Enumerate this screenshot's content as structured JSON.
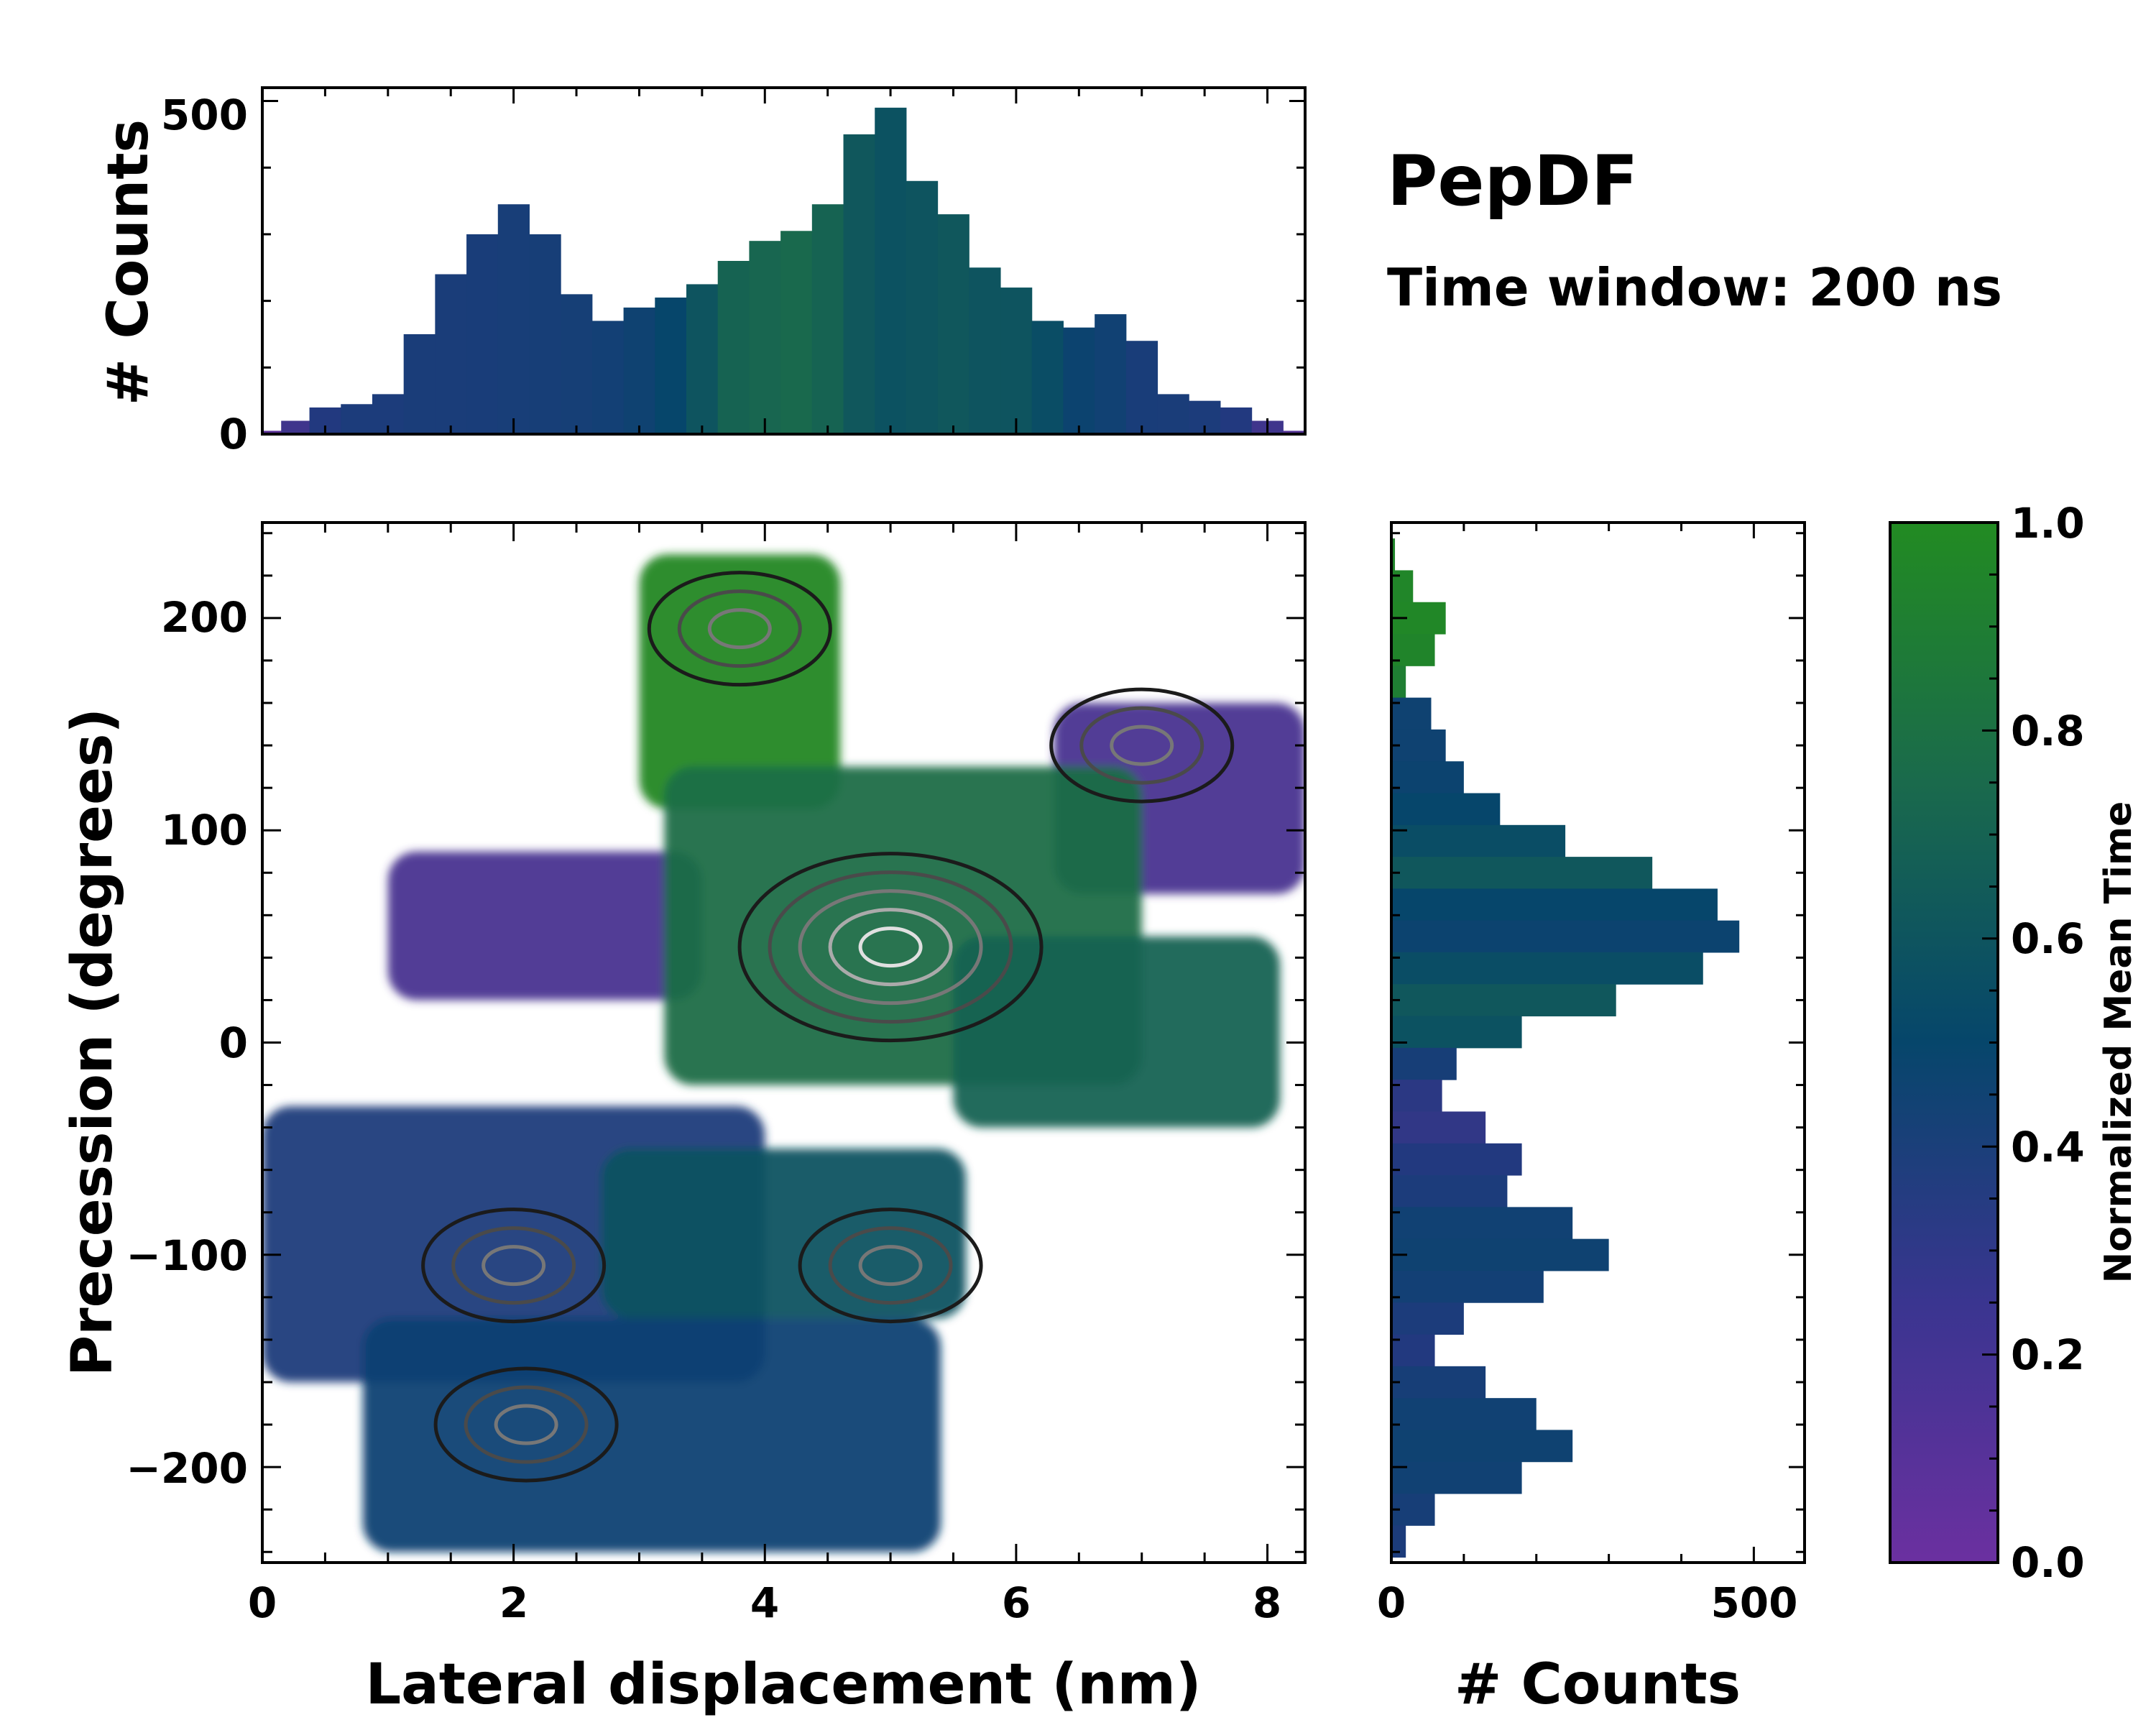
{
  "figure": {
    "title": "PepDF",
    "subtitle": "Time window: 200 ns"
  },
  "chart_data": [
    {
      "id": "main",
      "type": "heatmap",
      "xlabel": "Lateral displacement (nm)",
      "ylabel": "Precession (degrees)",
      "xlim": [
        0,
        8.3
      ],
      "ylim": [
        -245,
        245
      ],
      "xticks": [
        "0",
        "2",
        "4",
        "6",
        "8"
      ],
      "xtick_values": [
        0,
        2,
        4,
        6,
        8
      ],
      "yticks": [
        "−200",
        "−100",
        "0",
        "100",
        "200"
      ],
      "ytick_values": [
        -200,
        -100,
        0,
        100,
        200
      ],
      "colormap": "normalized mean time (purple → navy → teal → green)",
      "regions": [
        {
          "name": "top-green",
          "x": [
            3.0,
            4.6
          ],
          "y": [
            110,
            230
          ],
          "time": 0.98
        },
        {
          "name": "upper-left-purple",
          "x": [
            1.0,
            3.5
          ],
          "y": [
            20,
            90
          ],
          "time": 0.12
        },
        {
          "name": "upper-right-purple",
          "x": [
            6.3,
            8.3
          ],
          "y": [
            70,
            160
          ],
          "time": 0.12
        },
        {
          "name": "central-green",
          "x": [
            3.2,
            7.0
          ],
          "y": [
            -20,
            130
          ],
          "time": 0.78
        },
        {
          "name": "right-teal",
          "x": [
            5.5,
            8.1
          ],
          "y": [
            -40,
            50
          ],
          "time": 0.7
        },
        {
          "name": "left-band",
          "x": [
            0.0,
            4.0
          ],
          "y": [
            -160,
            -30
          ],
          "time": 0.3
        },
        {
          "name": "middle-teal",
          "x": [
            2.7,
            5.6
          ],
          "y": [
            -130,
            -50
          ],
          "time": 0.58
        },
        {
          "name": "bottom-navy",
          "x": [
            0.8,
            5.4
          ],
          "y": [
            -240,
            -130
          ],
          "time": 0.4
        }
      ],
      "density_peaks": [
        {
          "x": 5.0,
          "y": 45
        },
        {
          "x": 2.1,
          "y": -180
        },
        {
          "x": 2.0,
          "y": -105
        },
        {
          "x": 5.0,
          "y": -105
        },
        {
          "x": 3.8,
          "y": 195
        },
        {
          "x": 7.0,
          "y": 140
        }
      ]
    },
    {
      "id": "top-histogram",
      "type": "bar",
      "xlabel": "",
      "ylabel": "# Counts",
      "xlim": [
        0,
        8.3
      ],
      "ylim": [
        0,
        520
      ],
      "yticks": [
        "0",
        "500"
      ],
      "ytick_values": [
        0,
        500
      ],
      "bin_centers_nm": [
        0.05,
        0.25,
        0.5,
        0.75,
        1.0,
        1.25,
        1.5,
        1.75,
        2.0,
        2.25,
        2.5,
        2.75,
        3.0,
        3.25,
        3.5,
        3.75,
        4.0,
        4.25,
        4.5,
        4.75,
        5.0,
        5.25,
        5.5,
        5.75,
        6.0,
        6.25,
        6.5,
        6.75,
        7.0,
        7.25,
        7.5,
        7.75,
        8.0,
        8.25
      ],
      "values": [
        5,
        20,
        40,
        45,
        60,
        150,
        240,
        300,
        345,
        300,
        210,
        170,
        190,
        205,
        225,
        260,
        290,
        305,
        345,
        450,
        490,
        380,
        330,
        250,
        220,
        170,
        160,
        180,
        140,
        60,
        50,
        40,
        20,
        5
      ],
      "mean_time": [
        0.05,
        0.15,
        0.25,
        0.3,
        0.3,
        0.32,
        0.32,
        0.33,
        0.34,
        0.35,
        0.36,
        0.38,
        0.42,
        0.5,
        0.6,
        0.7,
        0.72,
        0.74,
        0.7,
        0.62,
        0.58,
        0.6,
        0.62,
        0.6,
        0.6,
        0.55,
        0.45,
        0.4,
        0.33,
        0.32,
        0.3,
        0.25,
        0.15,
        0.08
      ]
    },
    {
      "id": "right-histogram",
      "type": "bar",
      "orientation": "horizontal",
      "xlabel": "# Counts",
      "ylabel": "",
      "xlim": [
        0,
        570
      ],
      "ylim": [
        -245,
        245
      ],
      "xticks": [
        "0",
        "500"
      ],
      "xtick_values": [
        0,
        500
      ],
      "bin_centers_deg": [
        230,
        215,
        200,
        185,
        170,
        155,
        140,
        125,
        110,
        95,
        80,
        65,
        50,
        35,
        20,
        5,
        -10,
        -25,
        -40,
        -55,
        -70,
        -85,
        -100,
        -115,
        -130,
        -145,
        -160,
        -175,
        -190,
        -205,
        -220,
        -235
      ],
      "values": [
        5,
        30,
        75,
        60,
        20,
        55,
        75,
        100,
        150,
        240,
        360,
        450,
        480,
        430,
        310,
        180,
        90,
        70,
        130,
        180,
        160,
        250,
        300,
        210,
        100,
        60,
        130,
        200,
        250,
        180,
        60,
        20
      ],
      "mean_time": [
        0.95,
        0.96,
        0.97,
        0.95,
        0.9,
        0.42,
        0.42,
        0.45,
        0.5,
        0.55,
        0.62,
        0.5,
        0.45,
        0.55,
        0.62,
        0.58,
        0.35,
        0.22,
        0.2,
        0.25,
        0.3,
        0.4,
        0.42,
        0.38,
        0.3,
        0.25,
        0.35,
        0.4,
        0.42,
        0.4,
        0.35,
        0.3
      ]
    },
    {
      "id": "colorbar",
      "type": "colorbar",
      "label": "Normalized Mean Time",
      "range": [
        0.0,
        1.0
      ],
      "ticks": [
        "0.0",
        "0.2",
        "0.4",
        "0.6",
        "0.8",
        "1.0"
      ],
      "tick_values": [
        0.0,
        0.2,
        0.4,
        0.6,
        0.8,
        1.0
      ],
      "colors": [
        "#6b30a0",
        "#22397f",
        "#06466b",
        "#1a6a4c",
        "#228b22"
      ]
    }
  ]
}
